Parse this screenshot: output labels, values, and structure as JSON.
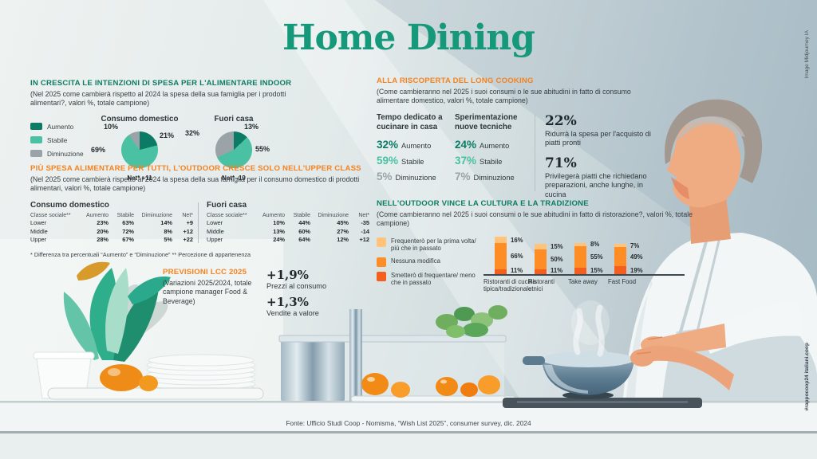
{
  "title": "Home Dining",
  "credit_top": "Image Midjourney IA",
  "credit_bottom": "#rappocoop24 italiani.coop",
  "footer": "Fonte: Ufficio Studi Coop - Nomisma, “Wish List 2025”, consumer survey, dic. 2024",
  "colors": {
    "title_teal": "#16997b",
    "header_green": "#0d7c63",
    "header_orange": "#f5821f",
    "aumento": "#0b7b66",
    "stabile": "#49c1a2",
    "diminuzione": "#9aa3a7",
    "bar_light": "#ffc37c",
    "bar_mid": "#ff8d26",
    "bar_dark": "#f45f1d"
  },
  "indoor": {
    "title": "IN CRESCITA LE INTENZIONI DI SPESA PER L'ALIMENTARE INDOOR",
    "subtitle": "(Nel 2025 come cambierà rispetto al 2024 la spesa della sua famiglia per i prodotti alimentari?, valori %, totale campione)",
    "legend": [
      {
        "label": "Aumento",
        "color": "#0b7b66"
      },
      {
        "label": "Stabile",
        "color": "#49c1a2"
      },
      {
        "label": "Diminuzione",
        "color": "#9aa3a7"
      }
    ]
  },
  "upper_class": {
    "title": "PIÙ SPESA ALIMENTARE PER TUTTI, L'OUTDOOR CRESCE SOLO NELL'UPPER CLASS",
    "subtitle": "(Nel 2025 come cambierà rispetto al 2024 la spesa della sua famiglia per il consumo domestico di prodotti alimentari, valori %, totale campione)",
    "footnote": "* Differenza tra percentuali “Aumento” e “Diminuzione” ** Percezione di appartenenza"
  },
  "long_cooking": {
    "title": "ALLA RISCOPERTA DEL LONG COOKING",
    "subtitle": "(Come cambieranno nel 2025 i suoi consumi o le sue abitudini in fatto di consumo alimentare domestico, valori %, totale campione)",
    "groups": [
      {
        "heading": "Tempo dedicato a cucinare in casa",
        "stats": [
          {
            "value": "32%",
            "label": "Aumento",
            "color": "#0b7b66"
          },
          {
            "value": "59%",
            "label": "Stabile",
            "color": "#49c1a2"
          },
          {
            "value": "5%",
            "label": "Diminuzione",
            "color": "#9aa3a7"
          }
        ]
      },
      {
        "heading": "Sperimentazione nuove tecniche",
        "stats": [
          {
            "value": "24%",
            "label": "Aumento",
            "color": "#0b7b66"
          },
          {
            "value": "37%",
            "label": "Stabile",
            "color": "#49c1a2"
          },
          {
            "value": "7%",
            "label": "Diminuzione",
            "color": "#9aa3a7"
          }
        ]
      }
    ],
    "highlights": [
      {
        "value": "22%",
        "text": "Ridurrà la spesa per l'acquisto di piatti pronti"
      },
      {
        "value": "71%",
        "text": "Privilegerà piatti che richiedano preparazioni, anche lunghe, in cucina"
      }
    ]
  },
  "outdoor": {
    "title": "NELL'OUTDOOR VINCE LA CULTURA E LA TRADIZIONE",
    "subtitle": "(Come cambieranno nel 2025 i suoi consumi o le sue abitudini in fatto di ristorazione?, valori %, totale campione)"
  },
  "previsioni": {
    "title": "PREVISIONI LCC 2025",
    "subtitle": "(Variazioni 2025/2024, totale campione manager Food & Beverage)",
    "stats": [
      {
        "value": "+1,9%",
        "label": "Prezzi al consumo"
      },
      {
        "value": "+1,3%",
        "label": "Vendite a valore"
      }
    ]
  },
  "chart_data": [
    {
      "type": "pie",
      "title": "Consumo domestico",
      "labels": [
        "Aumento",
        "Stabile",
        "Diminuzione"
      ],
      "values": [
        21,
        69,
        10
      ],
      "colors": [
        "#0b7b66",
        "#49c1a2",
        "#9aa3a7"
      ],
      "net": "Net* +11"
    },
    {
      "type": "pie",
      "title": "Fuori casa",
      "labels": [
        "Aumento",
        "Stabile",
        "Diminuzione"
      ],
      "values": [
        13,
        55,
        32
      ],
      "colors": [
        "#0b7b66",
        "#49c1a2",
        "#9aa3a7"
      ],
      "net": "Net* -19"
    },
    {
      "type": "table",
      "title": "Consumo domestico",
      "headers": [
        "Classe sociale**",
        "Aumento",
        "Stabile",
        "Diminuzione",
        "Net*"
      ],
      "rows": [
        [
          "Lower",
          "23%",
          "63%",
          "14%",
          "+9"
        ],
        [
          "Middle",
          "20%",
          "72%",
          "8%",
          "+12"
        ],
        [
          "Upper",
          "28%",
          "67%",
          "5%",
          "+22"
        ]
      ]
    },
    {
      "type": "table",
      "title": "Fuori casa",
      "headers": [
        "Classe sociale**",
        "Aumento",
        "Stabile",
        "Diminuzione",
        "Net*"
      ],
      "rows": [
        [
          "Lower",
          "10%",
          "44%",
          "45%",
          "-35"
        ],
        [
          "Middle",
          "13%",
          "60%",
          "27%",
          "-14"
        ],
        [
          "Upper",
          "24%",
          "64%",
          "12%",
          "+12"
        ]
      ]
    },
    {
      "type": "bar",
      "stacked": true,
      "categories": [
        "Ristoranti di cucina tipica/tradizionale",
        "Ristoranti etnici",
        "Take away",
        "Fast Food"
      ],
      "series": [
        {
          "name": "Frequenterò per la prima volta/ più che in passato",
          "color": "#ffc37c",
          "values": [
            16,
            15,
            8,
            7
          ]
        },
        {
          "name": "Nessuna modifica",
          "color": "#ff8d26",
          "values": [
            66,
            50,
            55,
            49
          ]
        },
        {
          "name": "Smetterò di frequentare/ meno che in passato",
          "color": "#f45f1d",
          "values": [
            11,
            11,
            15,
            19
          ]
        }
      ],
      "ylabel": "",
      "xlabel": "",
      "grid": false,
      "legend_position": "left"
    }
  ]
}
